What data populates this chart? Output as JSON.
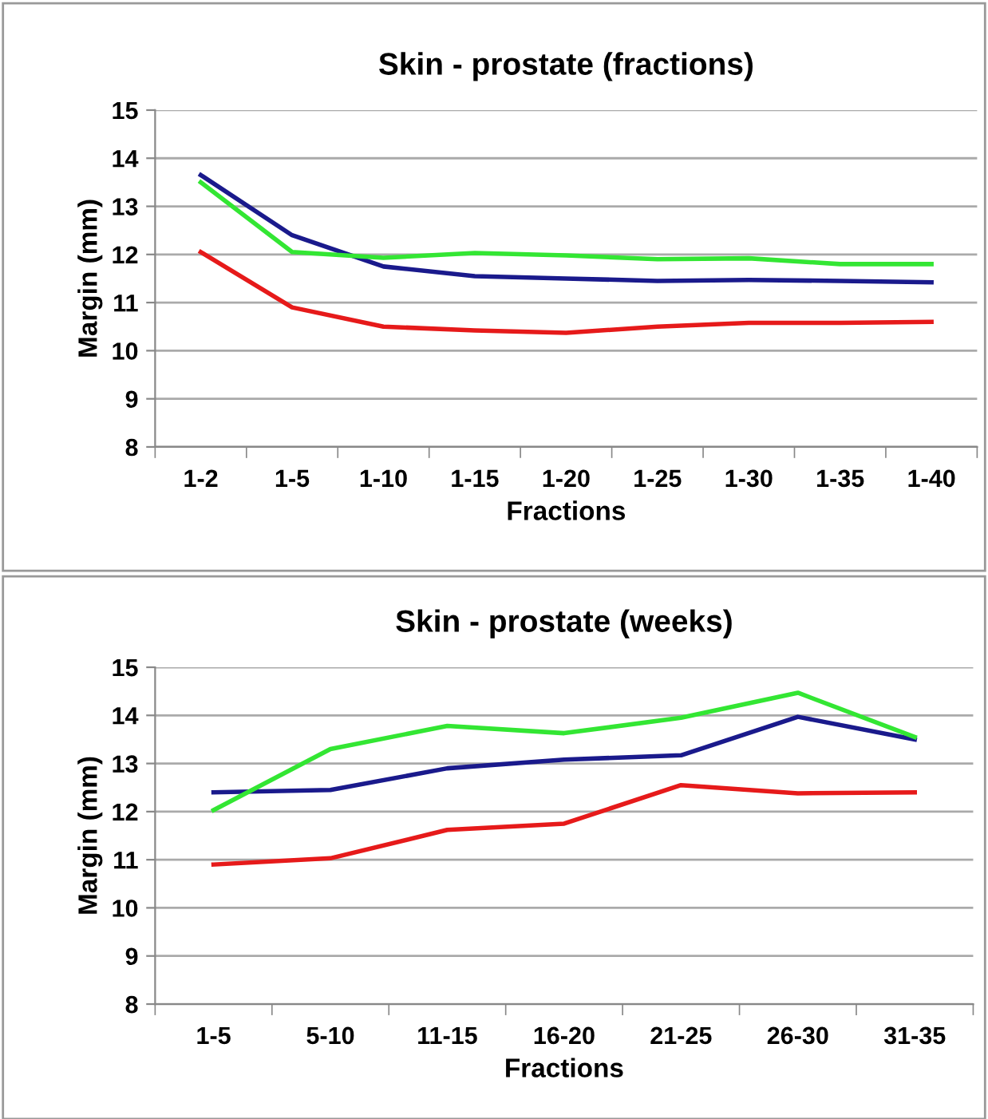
{
  "chart_data": [
    {
      "type": "line",
      "title": "Skin - prostate (fractions)",
      "xlabel": "Fractions",
      "ylabel": "Margin (mm)",
      "categories": [
        "1-2",
        "1-5",
        "1-10",
        "1-15",
        "1-20",
        "1-25",
        "1-30",
        "1-35",
        "1-40"
      ],
      "series": [
        {
          "color": "#1a1a8c",
          "values": [
            13.65,
            12.4,
            11.75,
            11.55,
            11.5,
            11.45,
            11.47,
            11.45,
            11.42
          ]
        },
        {
          "color": "#33e633",
          "values": [
            13.5,
            12.05,
            11.93,
            12.03,
            11.98,
            11.9,
            11.92,
            11.8,
            11.8
          ]
        },
        {
          "color": "#e61a1a",
          "values": [
            12.05,
            10.9,
            10.5,
            10.42,
            10.37,
            10.5,
            10.58,
            10.58,
            10.6
          ]
        }
      ],
      "ylim": [
        8,
        15
      ],
      "yticks": [
        8,
        9,
        10,
        11,
        12,
        13,
        14,
        15
      ],
      "grid": "y",
      "legend": false,
      "marker": "none",
      "line_style": "solid"
    },
    {
      "type": "line",
      "title": "Skin - prostate (weeks)",
      "xlabel": "Fractions",
      "ylabel": "Margin (mm)",
      "categories": [
        "1-5",
        "5-10",
        "11-15",
        "16-20",
        "21-25",
        "26-30",
        "31-35"
      ],
      "series": [
        {
          "color": "#1a1a8c",
          "values": [
            12.4,
            12.45,
            12.9,
            13.08,
            13.17,
            13.97,
            13.5
          ]
        },
        {
          "color": "#33e633",
          "values": [
            12.03,
            13.3,
            13.78,
            13.63,
            13.95,
            14.47,
            13.55
          ]
        },
        {
          "color": "#e61a1a",
          "values": [
            10.9,
            11.03,
            11.62,
            11.75,
            12.55,
            12.38,
            12.4
          ]
        }
      ],
      "ylim": [
        8,
        15
      ],
      "yticks": [
        8,
        9,
        10,
        11,
        12,
        13,
        14,
        15
      ],
      "grid": "y",
      "legend": false,
      "marker": "none",
      "line_style": "solid"
    }
  ]
}
